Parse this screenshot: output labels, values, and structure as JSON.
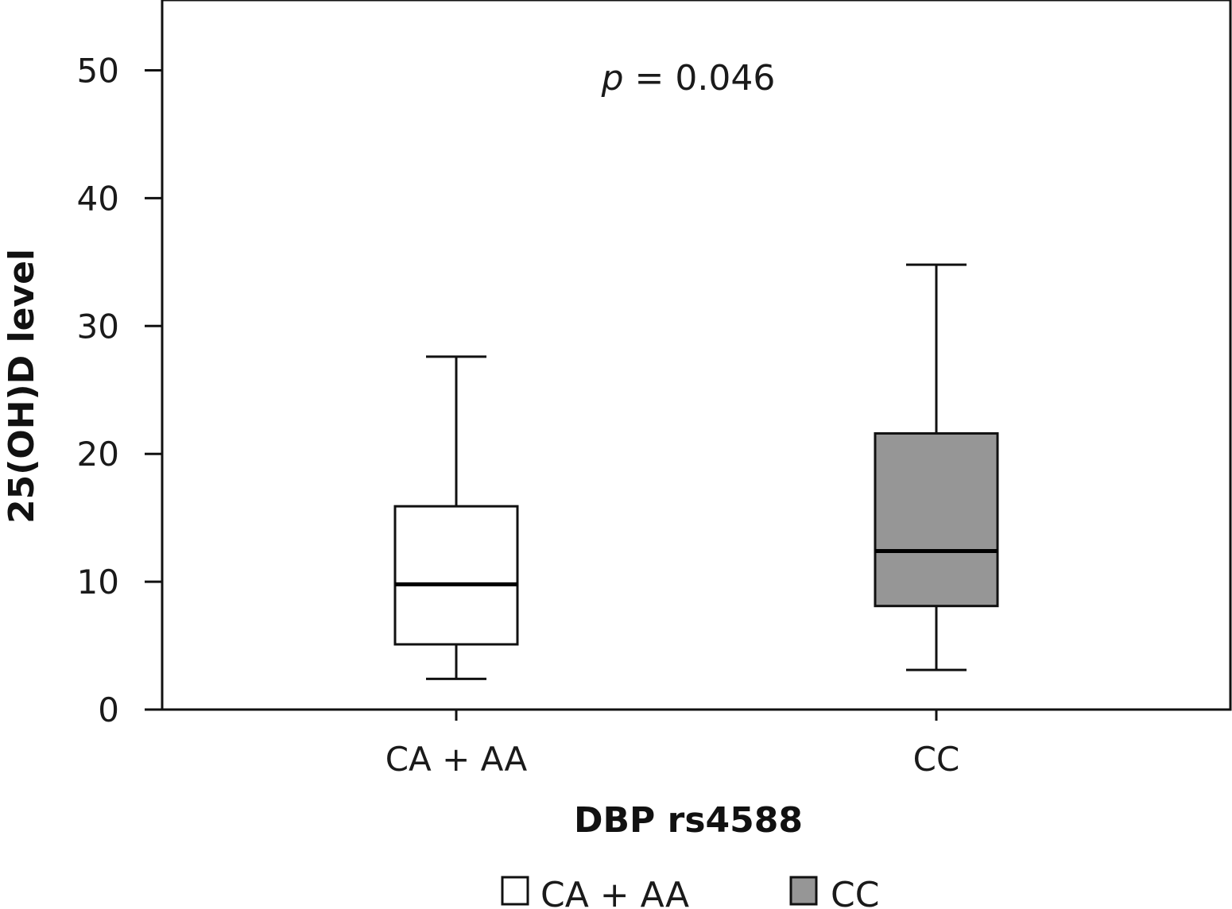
{
  "chart_data": {
    "type": "boxplot",
    "xlabel": "DBP rs4588",
    "ylabel": "25(OH)D level",
    "ylim": [
      0,
      55
    ],
    "yticks": [
      0,
      10,
      20,
      30,
      40,
      50
    ],
    "grid": false,
    "legend_position": "bottom",
    "annotation": {
      "italic": "p",
      "rest": " = 0.046"
    },
    "categories": [
      "CA + AA",
      "CC"
    ],
    "series": [
      {
        "name": "CA + AA",
        "color": "#ffffff",
        "min": 2.4,
        "q1": 5.1,
        "median": 9.8,
        "q3": 15.9,
        "max": 27.6
      },
      {
        "name": "CC",
        "color": "#969696",
        "min": 3.1,
        "q1": 8.1,
        "median": 12.4,
        "q3": 21.6,
        "max": 34.8
      }
    ]
  }
}
